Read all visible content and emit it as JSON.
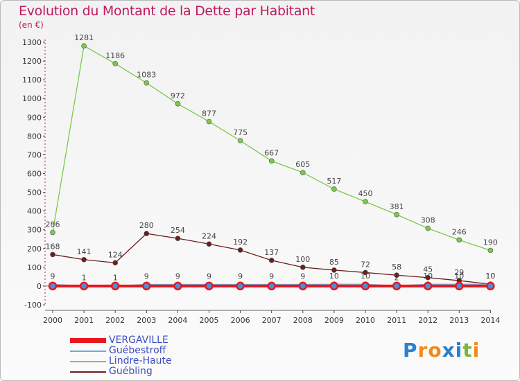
{
  "chart_data": {
    "type": "line",
    "title": "Evolution du Montant de la Dette par Habitant",
    "unit_label": "(en €)",
    "x": [
      "2000",
      "2001",
      "2002",
      "2003",
      "2004",
      "2005",
      "2006",
      "2007",
      "2008",
      "2009",
      "2010",
      "2011",
      "2012",
      "2013",
      "2014"
    ],
    "ylim": [
      -100,
      1300
    ],
    "yticks": [
      -100,
      0,
      100,
      200,
      300,
      400,
      500,
      600,
      700,
      800,
      900,
      1000,
      1100,
      1200,
      1300
    ],
    "grid": false,
    "legend_position": "bottom-left",
    "series": [
      {
        "name": "VERGAVILLE",
        "color": "#e8161e",
        "values": [
          0,
          0,
          0,
          0,
          0,
          0,
          0,
          0,
          0,
          0,
          0,
          0,
          0,
          0,
          0
        ],
        "show_labels": false
      },
      {
        "name": "Guébestroff",
        "color": "#6fa8d6",
        "values": [
          9,
          1,
          1,
          9,
          9,
          9,
          9,
          9,
          9,
          10,
          10,
          2,
          10,
          10,
          10
        ],
        "show_labels": true
      },
      {
        "name": "Lindre-Haute",
        "color": "#7cc84a",
        "values": [
          286,
          1281,
          1186,
          1083,
          972,
          877,
          775,
          667,
          605,
          517,
          450,
          381,
          308,
          246,
          190
        ],
        "show_labels": true
      },
      {
        "name": "Guébling",
        "color": "#6b1d1d",
        "values": [
          168,
          141,
          124,
          280,
          254,
          224,
          192,
          137,
          100,
          85,
          72,
          58,
          45,
          29,
          10
        ],
        "show_labels": true
      }
    ]
  },
  "logo": {
    "letters": [
      "P",
      "r",
      "o",
      "x",
      "i",
      "t",
      "i"
    ],
    "colors": [
      "#2b7fd0",
      "#f08a1c",
      "#f08a1c",
      "#2b7fd0",
      "#2b7fd0",
      "#7ab540",
      "#f08a1c"
    ]
  }
}
